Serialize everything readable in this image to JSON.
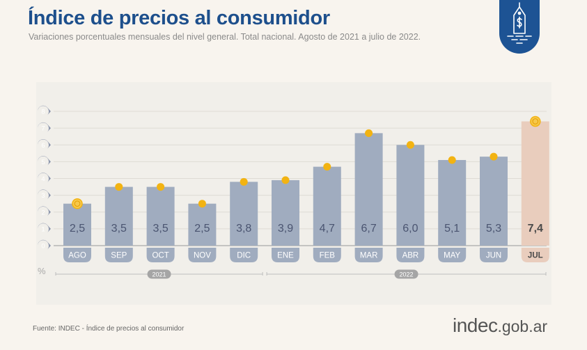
{
  "header": {
    "title": "Índice de precios al consumidor",
    "subtitle": "Variaciones porcentuales mensuales del nivel general. Total nacional. Agosto de 2021 a julio de 2022."
  },
  "badge": {
    "icon": "price-tag-dollar-icon",
    "color": "#1d5394"
  },
  "footer": {
    "source": "Fuente: INDEC - Índice de precios al consumidor",
    "logo_main": "indec",
    "logo_suffix": ".gob.ar"
  },
  "colors": {
    "title": "#1d4f8c",
    "bar": "#a0acbf",
    "bar_highlight": "#e9cdbd",
    "label_pill": "#a0acbf",
    "label_pill_highlight": "#e9cdbd",
    "marker": "#f2b312",
    "axis_bubble": "#8e97ad",
    "value_text": "#4a5470",
    "year_pill": "#a5a5a5"
  },
  "chart_data": {
    "type": "bar",
    "title": "Índice de precios al consumidor",
    "subtitle": "Variaciones porcentuales mensuales del nivel general. Total nacional. Agosto de 2021 a julio de 2022.",
    "xlabel": "",
    "ylabel": "%",
    "ylim": [
      0,
      8
    ],
    "yticks": [
      0,
      1,
      2,
      3,
      4,
      5,
      6,
      7,
      8
    ],
    "grid": true,
    "categories": [
      "AGO",
      "SEP",
      "OCT",
      "NOV",
      "DIC",
      "ENE",
      "FEB",
      "MAR",
      "ABR",
      "MAY",
      "JUN",
      "JUL"
    ],
    "values": [
      2.5,
      3.5,
      3.5,
      2.5,
      3.8,
      3.9,
      4.7,
      6.7,
      6.0,
      5.1,
      5.3,
      7.4
    ],
    "value_labels": [
      "2,5",
      "3,5",
      "3,5",
      "2,5",
      "3,8",
      "3,9",
      "4,7",
      "6,7",
      "6,0",
      "5,1",
      "5,3",
      "7,4"
    ],
    "highlight_index": 11,
    "ring_markers": [
      0,
      11
    ],
    "year_groups": [
      {
        "label": "2021",
        "start": 0,
        "end": 4
      },
      {
        "label": "2022",
        "start": 5,
        "end": 11
      }
    ]
  }
}
